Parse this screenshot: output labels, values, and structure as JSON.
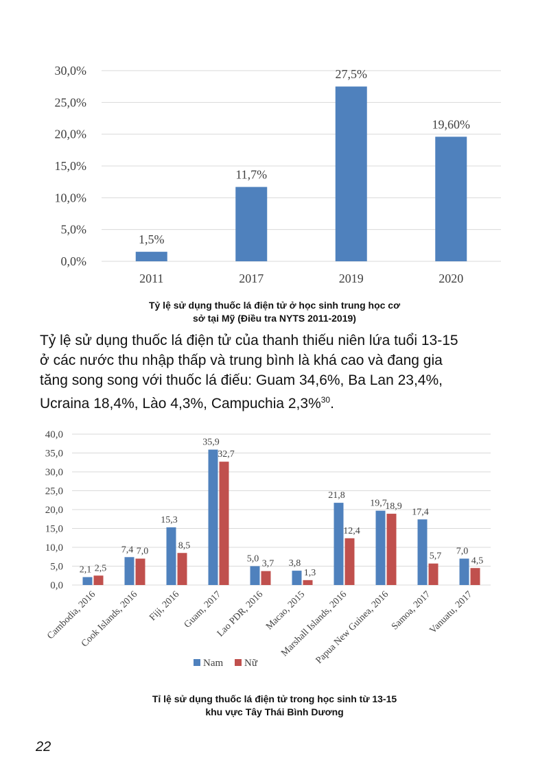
{
  "chart_data": [
    {
      "type": "bar",
      "categories": [
        "2011",
        "2017",
        "2019",
        "2020"
      ],
      "values": [
        1.5,
        11.7,
        27.5,
        19.6
      ],
      "data_labels": [
        "1,5%",
        "11,7%",
        "27,5%",
        "19,60%"
      ],
      "y_ticks": [
        "0,0%",
        "5,0%",
        "10,0%",
        "15,0%",
        "20,0%",
        "25,0%",
        "30,0%"
      ],
      "ylim": [
        0,
        30
      ],
      "grid": true,
      "bar_color": "#4f81bd",
      "title": "Tỷ lệ sử dụng thuốc lá điện tử ở học sinh trung học cơ sở tại Mỹ (Điều tra NYTS 2011-2019)"
    },
    {
      "type": "bar",
      "categories": [
        "Cambodia, 2016",
        "Cook Islands, 2016",
        "Fiji, 2016",
        "Guam, 2017",
        "Lao PDR, 2016",
        "Macao, 2015",
        "Marshall Islands, 2016",
        "Papua New Guinea, 2016",
        "Samoa, 2017",
        "Vanuatu, 2017"
      ],
      "series": [
        {
          "name": "Nam",
          "color": "#4f81bd",
          "values": [
            2.1,
            7.4,
            15.3,
            35.9,
            5.0,
            3.8,
            21.8,
            19.7,
            17.4,
            7.0
          ],
          "labels": [
            "2,1",
            "7,4",
            "15,3",
            "35,9",
            "5,0",
            "3,8",
            "21,8",
            "19,7",
            "17,4",
            "7,0"
          ]
        },
        {
          "name": "Nữ",
          "color": "#c0504d",
          "values": [
            2.5,
            7.0,
            8.5,
            32.7,
            3.7,
            1.3,
            12.4,
            18.9,
            5.7,
            4.5
          ],
          "labels": [
            "2,5",
            "7,0",
            "8,5",
            "32,7",
            "3,7",
            "1,3",
            "12,4",
            "18,9",
            "5,7",
            "4,5"
          ]
        }
      ],
      "y_ticks": [
        "0,0",
        "5,0",
        "10,0",
        "15,0",
        "20,0",
        "25,0",
        "30,0",
        "35,0",
        "40,0"
      ],
      "ylim": [
        0,
        40
      ],
      "grid": true,
      "legend_position": "bottom",
      "title": "Tỉ lệ sử dụng thuốc lá điện tử trong học sinh từ 13-15 khu vực Tây Thái Bình Dương"
    }
  ],
  "caption1": {
    "line1": "Tỷ lệ sử dụng thuốc lá điện tử ở học sinh trung học cơ",
    "line2": "sở tại Mỹ (Điều tra NYTS 2011-2019)"
  },
  "body_text": {
    "line1": "Tỷ lệ sử dụng thuốc lá điện tử của thanh thiếu niên lứa tuổi 13-15",
    "line2": "ở các nước thu nhập thấp và trung bình là khá cao và đang gia",
    "line3": "tăng song song với thuốc lá điếu: Guam 34,6%, Ba Lan 23,4%,",
    "line4": "Ucraina 18,4%, Lào 4,3%, Campuchia 2,3%",
    "ref": "30",
    "end": "."
  },
  "caption2": {
    "line1": "Tỉ lệ sử dụng thuốc lá điện tử trong học sinh từ 13-15",
    "line2": "khu vực Tây Thái Bình Dương"
  },
  "page_number": "22"
}
